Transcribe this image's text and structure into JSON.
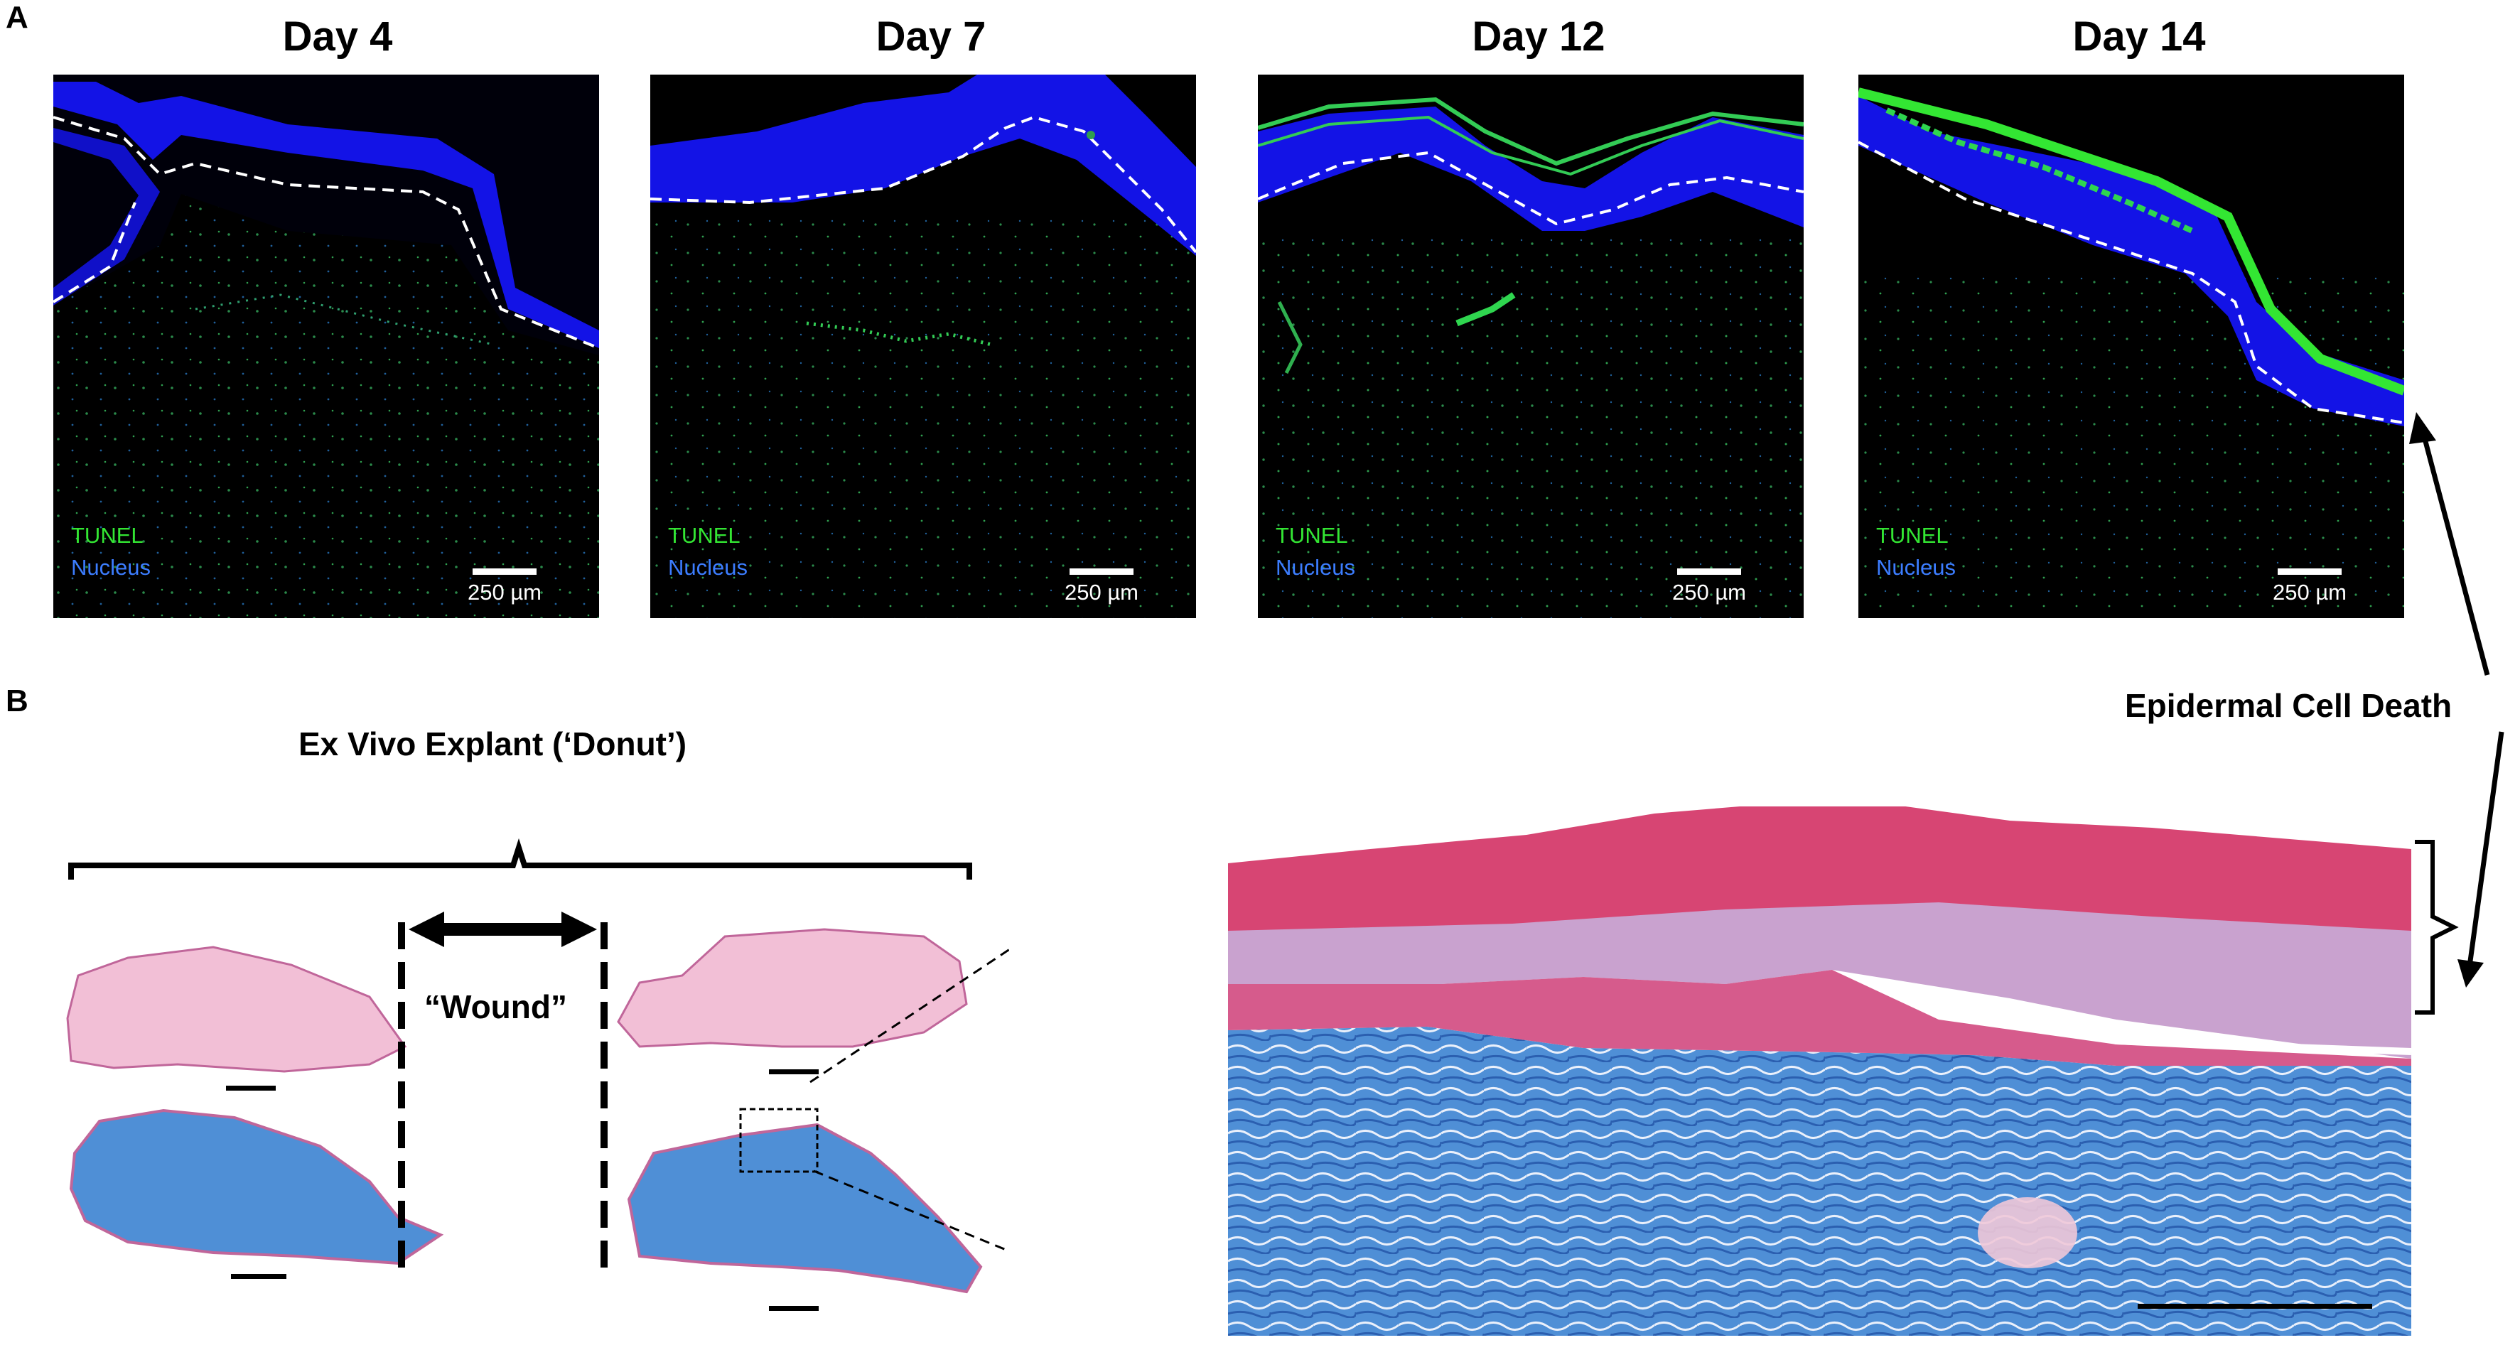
{
  "panel_a_letter": "A",
  "panel_b_letter": "B",
  "panels": [
    {
      "title": "Day 4",
      "tunel_label": "TUNEL",
      "nucleus_label": "Nucleus",
      "scale_label": "250 µm"
    },
    {
      "title": "Day 7",
      "tunel_label": "TUNEL",
      "nucleus_label": "Nucleus",
      "scale_label": "250 µm"
    },
    {
      "title": "Day 12",
      "tunel_label": "TUNEL",
      "nucleus_label": "Nucleus",
      "scale_label": "250 µm"
    },
    {
      "title": "Day 14",
      "tunel_label": "TUNEL",
      "nucleus_label": "Nucleus",
      "scale_label": "250 µm"
    }
  ],
  "annotation": "Epidermal Cell Death",
  "explant_title": "Ex Vivo Explant (‘Donut’)",
  "wound_label": "“Wound”",
  "colors": {
    "tunel": "#33e633",
    "nucleus": "#1a1aff",
    "nucleus_label": "#3c7dff",
    "he_stain": "#f2bfd6",
    "trichrome_blue": "#4f8fd6",
    "keratin_red": "#d0245a"
  }
}
